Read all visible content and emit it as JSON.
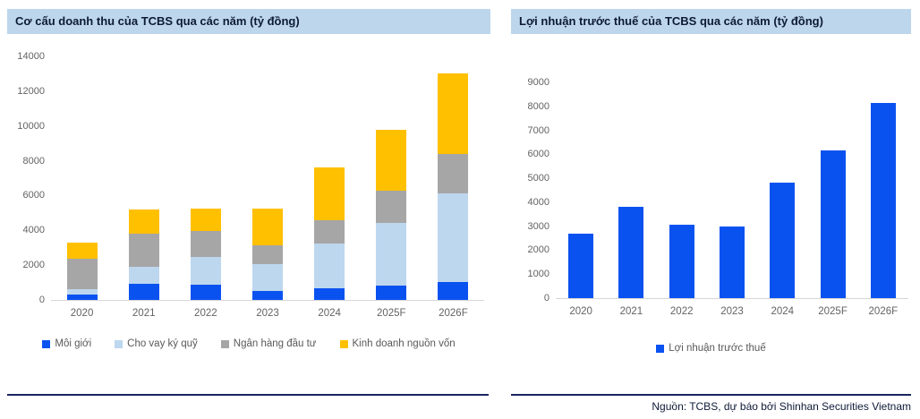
{
  "source_note": "Nguồn: TCBS, dự báo bởi Shinhan Securities Vietnam",
  "colors": {
    "accent_blue": "#0A52F0",
    "light_blue": "#BDD7EE",
    "gray": "#A6A6A6",
    "yellow": "#FFC000",
    "banner_bg": "#BDD6EC",
    "navy_rule": "#1B2660",
    "tick_text": "#636363"
  },
  "chart_data": [
    {
      "type": "bar",
      "stacked": true,
      "title": "Cơ cấu doanh thu của TCBS qua các năm (tỷ đồng)",
      "categories": [
        "2020",
        "2021",
        "2022",
        "2023",
        "2024",
        "2025F",
        "2026F"
      ],
      "series": [
        {
          "name": "Môi giới",
          "color": "#0A52F0",
          "values": [
            300,
            950,
            900,
            500,
            650,
            800,
            1050
          ]
        },
        {
          "name": "Cho vay ký quỹ",
          "color": "#BDD7EE",
          "values": [
            300,
            950,
            1550,
            1550,
            2600,
            3650,
            5050
          ]
        },
        {
          "name": "Ngân hàng đầu tư",
          "color": "#A6A6A6",
          "values": [
            1750,
            1900,
            1500,
            1100,
            1350,
            1850,
            2300
          ]
        },
        {
          "name": "Kinh doanh nguồn vốn",
          "color": "#FFC000",
          "values": [
            950,
            1400,
            1300,
            2100,
            3000,
            3500,
            4600
          ]
        }
      ],
      "xlabel": "",
      "ylabel": "",
      "ylim": [
        0,
        14000
      ],
      "ytick_step": 2000,
      "grid": false,
      "legend_position": "bottom"
    },
    {
      "type": "bar",
      "stacked": false,
      "title": "Lợi nhuận trước thuế của TCBS qua các năm (tỷ đồng)",
      "categories": [
        "2020",
        "2021",
        "2022",
        "2023",
        "2024",
        "2025F",
        "2026F"
      ],
      "series": [
        {
          "name": "Lợi nhuận trước thuế",
          "color": "#0A52F0",
          "values": [
            2700,
            3800,
            3050,
            3000,
            4800,
            6150,
            8150
          ]
        }
      ],
      "xlabel": "",
      "ylabel": "",
      "ylim": [
        0,
        9000
      ],
      "ytick_step": 1000,
      "grid": false,
      "legend_position": "bottom"
    }
  ]
}
